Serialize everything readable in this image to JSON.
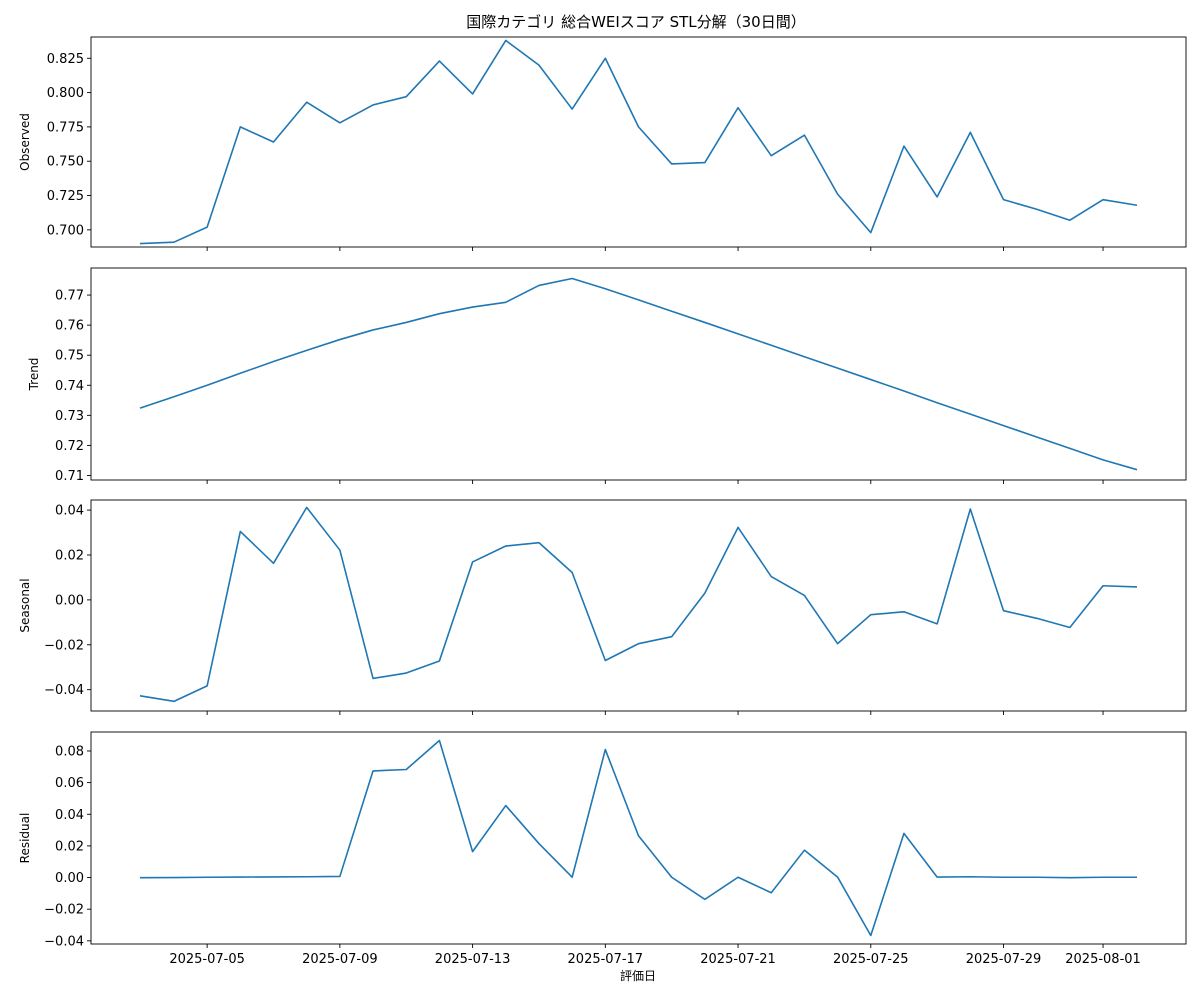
{
  "chart_data": {
    "type": "line",
    "title": "国際カテゴリ 総合WEIスコア STL分解（30日間）",
    "xlabel": "評価日",
    "dates": [
      "2025-07-03",
      "2025-07-04",
      "2025-07-05",
      "2025-07-06",
      "2025-07-07",
      "2025-07-08",
      "2025-07-09",
      "2025-07-10",
      "2025-07-11",
      "2025-07-12",
      "2025-07-13",
      "2025-07-14",
      "2025-07-15",
      "2025-07-16",
      "2025-07-17",
      "2025-07-18",
      "2025-07-19",
      "2025-07-20",
      "2025-07-21",
      "2025-07-22",
      "2025-07-23",
      "2025-07-24",
      "2025-07-25",
      "2025-07-26",
      "2025-07-27",
      "2025-07-28",
      "2025-07-29",
      "2025-07-30",
      "2025-07-31",
      "2025-08-01",
      "2025-08-02"
    ],
    "x_ticks": [
      "2025-07-05",
      "2025-07-09",
      "2025-07-13",
      "2025-07-17",
      "2025-07-21",
      "2025-07-25",
      "2025-07-29",
      "2025-08-01"
    ],
    "line_color": "#1f77b4",
    "grid": false,
    "panels": [
      {
        "ylabel": "Observed",
        "ylim": [
          0.6875,
          0.8405
        ],
        "yticks": [
          "0.700",
          "0.725",
          "0.750",
          "0.775",
          "0.800",
          "0.825"
        ],
        "values": [
          0.69,
          0.691,
          0.702,
          0.775,
          0.764,
          0.793,
          0.778,
          0.791,
          0.797,
          0.823,
          0.799,
          0.838,
          0.82,
          0.788,
          0.825,
          0.775,
          0.748,
          0.749,
          0.789,
          0.754,
          0.769,
          0.726,
          0.698,
          0.761,
          0.724,
          0.771,
          0.722,
          0.715,
          0.707,
          0.722,
          0.718
        ]
      },
      {
        "ylabel": "Trend",
        "ylim": [
          0.7085,
          0.779
        ],
        "yticks": [
          "0.71",
          "0.72",
          "0.73",
          "0.74",
          "0.75",
          "0.76",
          "0.77"
        ],
        "values": [
          0.7325,
          0.7362,
          0.74,
          0.744,
          0.7479,
          0.7516,
          0.7552,
          0.7584,
          0.7609,
          0.7638,
          0.766,
          0.7676,
          0.7732,
          0.7755,
          0.7721,
          0.7684,
          0.7646,
          0.7609,
          0.7571,
          0.7533,
          0.7495,
          0.7457,
          0.7419,
          0.7381,
          0.7342,
          0.7304,
          0.7266,
          0.7228,
          0.719,
          0.7152,
          0.712
        ]
      },
      {
        "ylabel": "Seasonal",
        "ylim": [
          -0.0495,
          0.0445
        ],
        "yticks": [
          "−0.04",
          "−0.02",
          "0.00",
          "0.02",
          "0.04"
        ],
        "values": [
          -0.0428,
          -0.0452,
          -0.0383,
          0.0305,
          0.0163,
          0.0412,
          0.0222,
          -0.035,
          -0.0326,
          -0.0272,
          0.0169,
          0.024,
          0.0255,
          0.0122,
          -0.027,
          -0.0195,
          -0.0164,
          0.003,
          0.0323,
          0.0104,
          0.002,
          -0.0195,
          -0.0066,
          -0.0053,
          -0.0107,
          0.0405,
          -0.0048,
          -0.0082,
          -0.0123,
          0.0063,
          0.0058
        ]
      },
      {
        "ylabel": "Residual",
        "ylim": [
          -0.042,
          0.092
        ],
        "yticks": [
          "−0.04",
          "−0.02",
          "0.00",
          "0.02",
          "0.04",
          "0.06",
          "0.08"
        ],
        "values": [
          -0.0001,
          0.0,
          0.0002,
          0.0003,
          0.0004,
          0.0005,
          0.0007,
          0.0674,
          0.0683,
          0.0866,
          0.0164,
          0.0455,
          0.0215,
          0.0002,
          0.0809,
          0.0264,
          0.0002,
          -0.0138,
          0.0002,
          -0.0096,
          0.0173,
          0.0003,
          -0.0366,
          0.0279,
          0.0003,
          0.0005,
          0.0002,
          0.0002,
          -0.0001,
          0.0002,
          0.0002
        ]
      }
    ]
  }
}
